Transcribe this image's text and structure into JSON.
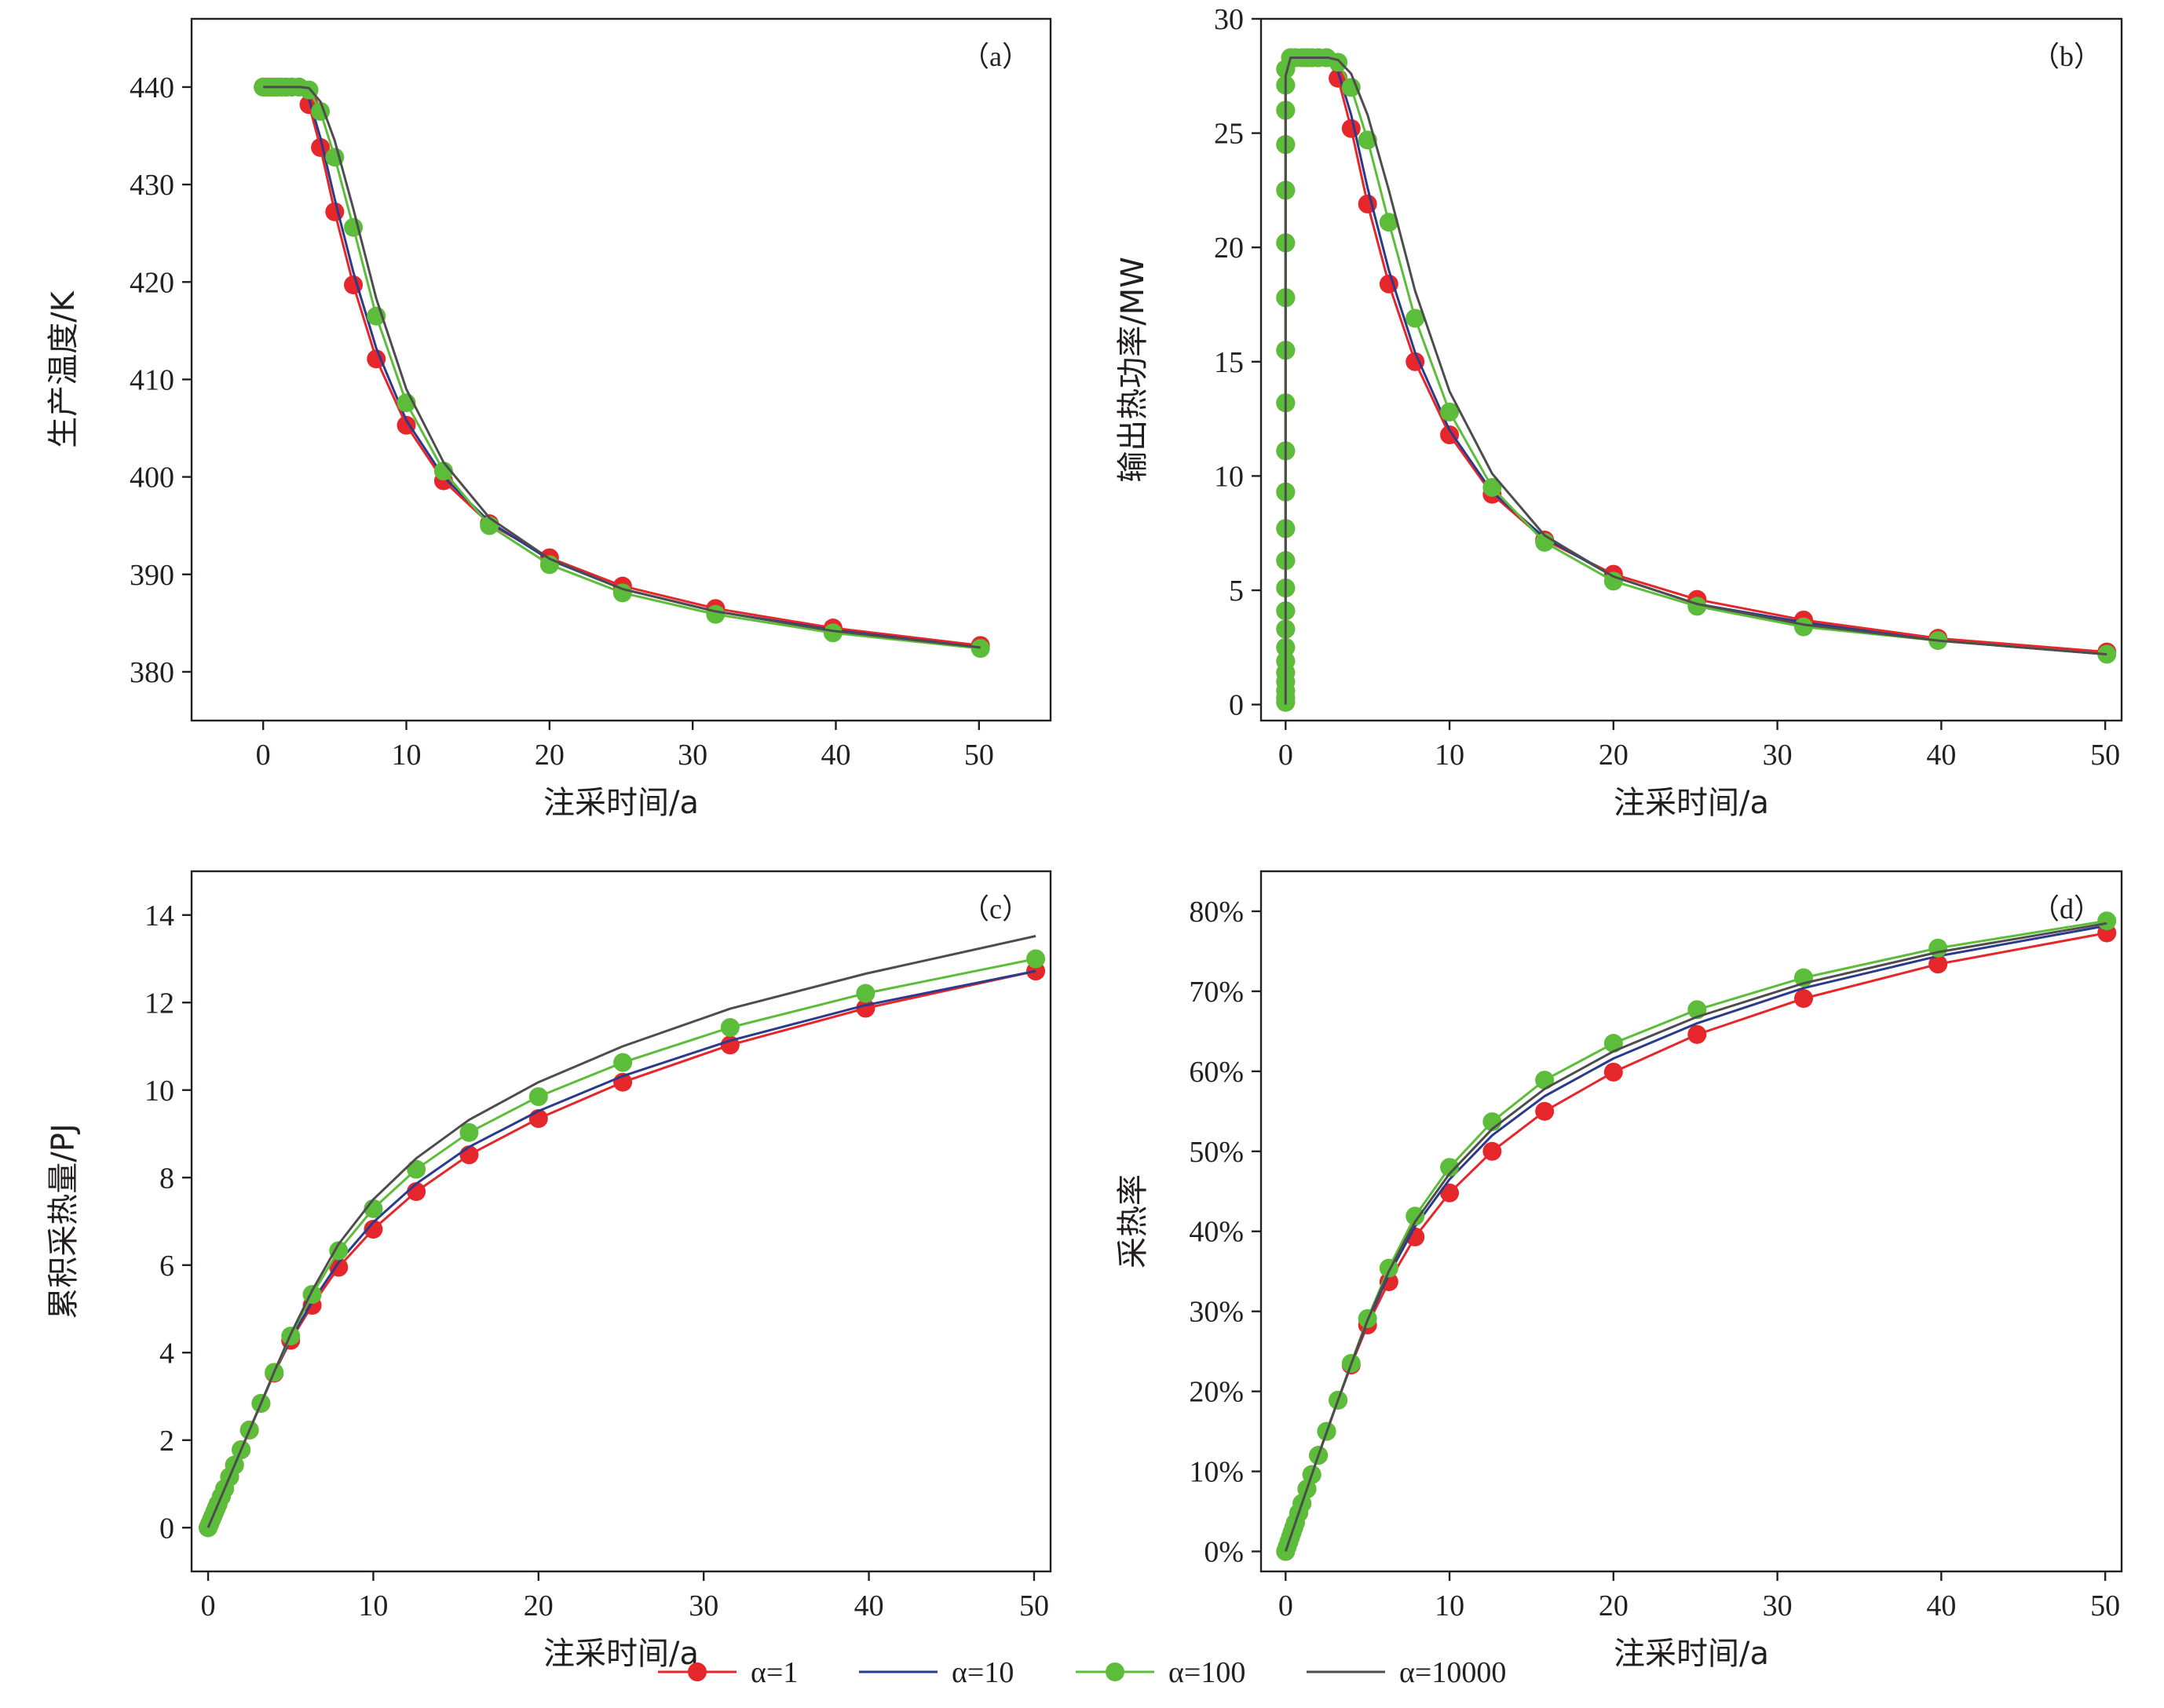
{
  "colors": {
    "alpha_1": "#e5262b",
    "alpha_10": "#2b3a8a",
    "alpha_100": "#5cbd3a",
    "alpha_10000": "#4d4d4d"
  },
  "legend": [
    {
      "label": "α=1",
      "color_key": "alpha_1",
      "marker": true
    },
    {
      "label": "α=10",
      "color_key": "alpha_10",
      "marker": false
    },
    {
      "label": "α=100",
      "color_key": "alpha_100",
      "marker": true
    },
    {
      "label": "α=10000",
      "color_key": "alpha_10000",
      "marker": false
    }
  ],
  "chart_data": [
    {
      "id": "a",
      "type": "line",
      "panel_label": "（a）",
      "xlabel": "注采时间/a",
      "ylabel": "生产温度/K",
      "xlim": [
        -5,
        55
      ],
      "ylim": [
        375,
        447
      ],
      "xticks": [
        0,
        10,
        20,
        30,
        40,
        50
      ],
      "yticks": [
        380,
        390,
        400,
        410,
        420,
        430,
        440
      ],
      "series": [
        {
          "name": "α=1",
          "color_key": "alpha_1",
          "marker": true,
          "x": [
            0,
            0.2,
            0.4,
            0.6,
            0.8,
            1.0,
            1.3,
            1.6,
            2.0,
            2.5,
            3.2,
            4.0,
            5.0,
            6.3,
            7.9,
            10.0,
            12.6,
            15.8,
            20.0,
            25.1,
            31.6,
            39.8,
            50.1
          ],
          "y": [
            440,
            440,
            440,
            440,
            440,
            440,
            440,
            440,
            440,
            440,
            438.2,
            433.8,
            427.2,
            419.7,
            412.1,
            405.3,
            399.6,
            395.2,
            391.7,
            388.8,
            386.5,
            384.5,
            382.7
          ]
        },
        {
          "name": "α=10",
          "color_key": "alpha_10",
          "marker": false,
          "x": [
            0,
            1.0,
            2.0,
            2.5,
            3.2,
            4.0,
            5.0,
            6.3,
            7.9,
            10.0,
            12.6,
            15.8,
            20.0,
            25.1,
            31.6,
            39.8,
            50.1
          ],
          "y": [
            440,
            440,
            440,
            440,
            438.8,
            434.8,
            428.5,
            421.0,
            413.2,
            405.8,
            400.0,
            395.4,
            391.5,
            388.5,
            386.2,
            384.3,
            382.5
          ]
        },
        {
          "name": "α=100",
          "color_key": "alpha_100",
          "marker": true,
          "x": [
            0,
            0.2,
            0.4,
            0.6,
            0.8,
            1.0,
            1.3,
            1.6,
            2.0,
            2.5,
            3.2,
            4.0,
            5.0,
            6.3,
            7.9,
            10.0,
            12.6,
            15.8,
            20.0,
            25.1,
            31.6,
            39.8,
            50.1
          ],
          "y": [
            440,
            440,
            440,
            440,
            440,
            440,
            440,
            440,
            440,
            440,
            439.7,
            437.5,
            432.8,
            425.6,
            416.5,
            407.6,
            400.6,
            395.0,
            391.0,
            388.1,
            385.9,
            384.0,
            382.4
          ]
        },
        {
          "name": "α=10000",
          "color_key": "alpha_10000",
          "marker": false,
          "x": [
            0,
            1.0,
            2.0,
            2.6,
            3.2,
            4.0,
            5.0,
            6.3,
            7.9,
            10.0,
            12.6,
            15.8,
            20.0,
            25.1,
            31.6,
            39.8,
            50.1
          ],
          "y": [
            440,
            440,
            440,
            440,
            439.9,
            438.5,
            434.5,
            427.5,
            418.3,
            409.0,
            401.5,
            395.8,
            391.6,
            388.5,
            386.2,
            384.2,
            382.5
          ]
        }
      ]
    },
    {
      "id": "b",
      "type": "line",
      "panel_label": "（b）",
      "xlabel": "注采时间/a",
      "ylabel": "输出热功率/MW",
      "xlim": [
        -1.5,
        51
      ],
      "ylim": [
        -0.7,
        30
      ],
      "xticks": [
        0,
        10,
        20,
        30,
        40,
        50
      ],
      "yticks": [
        0,
        5,
        10,
        15,
        20,
        25,
        30
      ],
      "series": [
        {
          "name": "α=1",
          "color_key": "alpha_1",
          "marker": true,
          "x": [
            0,
            0,
            0,
            0,
            0,
            0,
            0,
            0,
            0,
            0,
            0,
            0,
            0,
            0,
            0,
            0,
            0,
            0,
            0,
            0,
            0,
            0,
            0,
            0.3,
            0.6,
            1.0,
            1.3,
            1.6,
            2.0,
            2.5,
            3.2,
            4.0,
            5.0,
            6.3,
            7.9,
            10.0,
            12.6,
            15.8,
            20.0,
            25.1,
            31.6,
            39.8,
            50.1
          ],
          "y": [
            0.1,
            0.3,
            0.6,
            1.0,
            1.4,
            1.9,
            2.5,
            3.3,
            4.1,
            5.1,
            6.3,
            7.7,
            9.3,
            11.1,
            13.2,
            15.5,
            17.8,
            20.2,
            22.5,
            24.5,
            26.0,
            27.1,
            27.8,
            28.3,
            28.3,
            28.3,
            28.3,
            28.3,
            28.3,
            28.3,
            27.4,
            25.2,
            21.9,
            18.4,
            15.0,
            11.8,
            9.2,
            7.2,
            5.7,
            4.6,
            3.7,
            2.9,
            2.3
          ]
        },
        {
          "name": "α=10",
          "color_key": "alpha_10",
          "marker": false,
          "x": [
            0,
            0,
            0.3,
            1.0,
            2.0,
            2.5,
            3.2,
            4.0,
            5.0,
            6.3,
            7.9,
            10.0,
            12.6,
            15.8,
            20.0,
            25.1,
            31.6,
            39.8,
            50.1
          ],
          "y": [
            0,
            27.5,
            28.3,
            28.3,
            28.3,
            28.3,
            27.7,
            25.8,
            22.6,
            19.0,
            15.4,
            12.0,
            9.3,
            7.3,
            5.6,
            4.4,
            3.6,
            2.8,
            2.2
          ]
        },
        {
          "name": "α=100",
          "color_key": "alpha_100",
          "marker": true,
          "x": [
            0,
            0,
            0,
            0,
            0,
            0,
            0,
            0,
            0,
            0,
            0,
            0,
            0,
            0,
            0,
            0,
            0,
            0,
            0,
            0,
            0,
            0,
            0,
            0.3,
            0.6,
            1.0,
            1.3,
            1.6,
            2.0,
            2.5,
            3.2,
            4.0,
            5.0,
            6.3,
            7.9,
            10.0,
            12.6,
            15.8,
            20.0,
            25.1,
            31.6,
            39.8,
            50.1
          ],
          "y": [
            0.1,
            0.3,
            0.6,
            1.0,
            1.4,
            1.9,
            2.5,
            3.3,
            4.1,
            5.1,
            6.3,
            7.7,
            9.3,
            11.1,
            13.2,
            15.5,
            17.8,
            20.2,
            22.5,
            24.5,
            26.0,
            27.1,
            27.8,
            28.3,
            28.3,
            28.3,
            28.3,
            28.3,
            28.3,
            28.3,
            28.1,
            27.0,
            24.7,
            21.1,
            16.9,
            12.8,
            9.5,
            7.1,
            5.4,
            4.3,
            3.4,
            2.8,
            2.2
          ]
        },
        {
          "name": "α=10000",
          "color_key": "alpha_10000",
          "marker": false,
          "x": [
            0,
            0,
            0.3,
            1.0,
            2.0,
            2.6,
            3.2,
            4.0,
            5.0,
            6.3,
            7.9,
            10.0,
            12.6,
            15.8,
            20.0,
            25.1,
            31.6,
            39.8,
            50.1
          ],
          "y": [
            0,
            27.5,
            28.3,
            28.3,
            28.3,
            28.3,
            28.2,
            27.6,
            25.8,
            22.5,
            18.1,
            13.7,
            10.1,
            7.4,
            5.6,
            4.4,
            3.5,
            2.8,
            2.2
          ]
        }
      ]
    },
    {
      "id": "c",
      "type": "line",
      "panel_label": "（c）",
      "xlabel": "注采时间/a",
      "ylabel": "累积采热量/PJ",
      "xlim": [
        -1,
        51
      ],
      "ylim": [
        -1,
        15
      ],
      "xticks": [
        0,
        10,
        20,
        30,
        40,
        50
      ],
      "yticks": [
        0,
        2,
        4,
        6,
        8,
        10,
        12,
        14
      ],
      "series": [
        {
          "name": "α=1",
          "color_key": "alpha_1",
          "marker": true,
          "x": [
            0,
            0.1,
            0.2,
            0.3,
            0.4,
            0.5,
            0.6,
            0.8,
            1.0,
            1.3,
            1.6,
            2.0,
            2.5,
            3.2,
            4.0,
            5.0,
            6.3,
            7.9,
            10.0,
            12.6,
            15.8,
            20.0,
            25.1,
            31.6,
            39.8,
            50.1
          ],
          "y": [
            0,
            0.09,
            0.18,
            0.27,
            0.36,
            0.45,
            0.54,
            0.71,
            0.89,
            1.16,
            1.43,
            1.78,
            2.23,
            2.84,
            3.53,
            4.28,
            5.08,
            5.95,
            6.82,
            7.68,
            8.52,
            9.35,
            10.18,
            11.03,
            11.87,
            12.72
          ]
        },
        {
          "name": "α=10",
          "color_key": "alpha_10",
          "marker": false,
          "x": [
            0,
            1.0,
            2.0,
            3.2,
            4.0,
            5.0,
            6.3,
            7.9,
            10.0,
            12.6,
            15.8,
            20.0,
            25.1,
            31.6,
            39.8,
            50.1
          ],
          "y": [
            0,
            0.89,
            1.78,
            2.84,
            3.54,
            4.32,
            5.16,
            6.06,
            6.98,
            7.86,
            8.7,
            9.52,
            10.32,
            11.13,
            11.94,
            12.72
          ]
        },
        {
          "name": "α=100",
          "color_key": "alpha_100",
          "marker": true,
          "x": [
            0,
            0.1,
            0.2,
            0.3,
            0.4,
            0.5,
            0.6,
            0.8,
            1.0,
            1.3,
            1.6,
            2.0,
            2.5,
            3.2,
            4.0,
            5.0,
            6.3,
            7.9,
            10.0,
            12.6,
            15.8,
            20.0,
            25.1,
            31.6,
            39.8,
            50.1
          ],
          "y": [
            0,
            0.09,
            0.18,
            0.27,
            0.36,
            0.45,
            0.54,
            0.71,
            0.89,
            1.16,
            1.43,
            1.78,
            2.23,
            2.84,
            3.55,
            4.38,
            5.33,
            6.33,
            7.29,
            8.19,
            9.03,
            9.85,
            10.63,
            11.43,
            12.21,
            13.0
          ]
        },
        {
          "name": "α=10000",
          "color_key": "alpha_10000",
          "marker": false,
          "x": [
            0,
            1.0,
            2.0,
            3.2,
            4.0,
            5.0,
            6.3,
            7.9,
            10.0,
            12.6,
            15.8,
            20.0,
            25.1,
            31.6,
            39.8,
            50.1
          ],
          "y": [
            0,
            0.89,
            1.78,
            2.84,
            3.56,
            4.42,
            5.42,
            6.48,
            7.5,
            8.44,
            9.32,
            10.18,
            11.0,
            11.86,
            12.66,
            13.52
          ]
        }
      ]
    },
    {
      "id": "d",
      "type": "line",
      "panel_label": "（d）",
      "xlabel": "注采时间/a",
      "ylabel": "采热率",
      "xlim": [
        -1.5,
        51
      ],
      "ylim": [
        -2.5,
        85
      ],
      "xticks": [
        0,
        10,
        20,
        30,
        40,
        50
      ],
      "yticks": [
        0,
        10,
        20,
        30,
        40,
        50,
        60,
        70,
        80
      ],
      "ytick_format": "{}%",
      "series": [
        {
          "name": "α=1",
          "color_key": "alpha_1",
          "marker": true,
          "x": [
            0,
            0.1,
            0.2,
            0.3,
            0.4,
            0.5,
            0.6,
            0.8,
            1.0,
            1.3,
            1.6,
            2.0,
            2.5,
            3.2,
            4.0,
            5.0,
            6.3,
            7.9,
            10.0,
            12.6,
            15.8,
            20.0,
            25.1,
            31.6,
            39.8,
            50.1
          ],
          "y": [
            0,
            0.6,
            1.2,
            1.8,
            2.4,
            3.0,
            3.6,
            4.8,
            6.0,
            7.8,
            9.6,
            12.0,
            15.0,
            18.9,
            23.3,
            28.3,
            33.7,
            39.3,
            44.8,
            50.0,
            55.0,
            59.9,
            64.6,
            69.1,
            73.4,
            77.3
          ]
        },
        {
          "name": "α=10",
          "color_key": "alpha_10",
          "marker": false,
          "x": [
            0,
            1.0,
            2.0,
            3.2,
            4.0,
            5.0,
            6.3,
            7.9,
            10.0,
            12.6,
            15.8,
            20.0,
            25.1,
            31.6,
            39.8,
            50.1
          ],
          "y": [
            0,
            6.0,
            12.0,
            18.9,
            23.4,
            28.7,
            34.6,
            40.6,
            46.5,
            52.0,
            56.9,
            61.6,
            66.0,
            70.4,
            74.4,
            78.2
          ]
        },
        {
          "name": "α=100",
          "color_key": "alpha_100",
          "marker": true,
          "x": [
            0,
            0.1,
            0.2,
            0.3,
            0.4,
            0.5,
            0.6,
            0.8,
            1.0,
            1.3,
            1.6,
            2.0,
            2.5,
            3.2,
            4.0,
            5.0,
            6.3,
            7.9,
            10.0,
            12.6,
            15.8,
            20.0,
            25.1,
            31.6,
            39.8,
            50.1
          ],
          "y": [
            0,
            0.6,
            1.2,
            1.8,
            2.4,
            3.0,
            3.6,
            4.8,
            6.0,
            7.8,
            9.6,
            12.0,
            15.0,
            18.9,
            23.5,
            29.1,
            35.4,
            41.9,
            48.0,
            53.7,
            58.9,
            63.5,
            67.7,
            71.7,
            75.4,
            78.8
          ]
        },
        {
          "name": "α=10000",
          "color_key": "alpha_10000",
          "marker": false,
          "x": [
            0,
            1.0,
            2.0,
            3.2,
            4.0,
            5.0,
            6.3,
            7.9,
            10.0,
            12.6,
            15.8,
            20.0,
            25.1,
            31.6,
            39.8,
            50.1
          ],
          "y": [
            0,
            6.0,
            12.0,
            18.9,
            23.4,
            28.9,
            35.0,
            41.2,
            47.2,
            52.8,
            57.8,
            62.5,
            66.8,
            71.0,
            74.9,
            78.5
          ]
        }
      ]
    }
  ]
}
